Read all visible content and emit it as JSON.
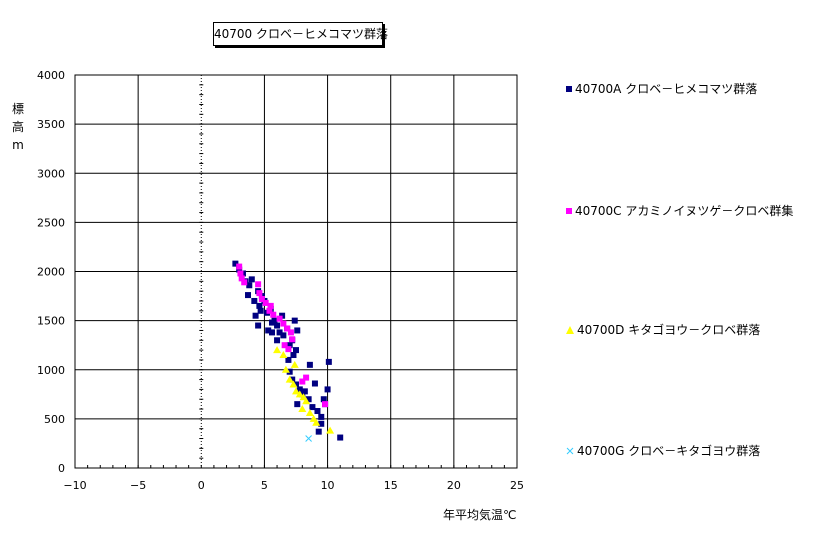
{
  "chart_data": {
    "type": "scatter",
    "title": "40700 クロベ－ヒメコマツ群落",
    "xlabel": "年平均気温℃",
    "ylabel": "標高m",
    "xlim": [
      -10,
      25
    ],
    "ylim": [
      0,
      4000
    ],
    "x_ticks": [
      -10,
      -5,
      0,
      5,
      10,
      15,
      20,
      25
    ],
    "y_ticks": [
      0,
      500,
      1000,
      1500,
      2000,
      2500,
      3000,
      3500,
      4000
    ],
    "grid": true,
    "legend_position": "right",
    "series": [
      {
        "name": "40700A クロベ－ヒメコマツ群落",
        "marker": "square",
        "color": "#000080",
        "points": [
          [
            2.7,
            2080
          ],
          [
            3.0,
            2020
          ],
          [
            3.3,
            1980
          ],
          [
            3.5,
            1900
          ],
          [
            3.8,
            1860
          ],
          [
            4.0,
            1920
          ],
          [
            3.7,
            1760
          ],
          [
            4.2,
            1700
          ],
          [
            4.5,
            1800
          ],
          [
            4.8,
            1750
          ],
          [
            4.6,
            1650
          ],
          [
            5.0,
            1700
          ],
          [
            4.3,
            1550
          ],
          [
            4.7,
            1600
          ],
          [
            5.2,
            1580
          ],
          [
            5.5,
            1620
          ],
          [
            4.5,
            1450
          ],
          [
            5.3,
            1400
          ],
          [
            5.6,
            1480
          ],
          [
            5.8,
            1500
          ],
          [
            6.0,
            1450
          ],
          [
            6.2,
            1380
          ],
          [
            6.0,
            1300
          ],
          [
            6.5,
            1350
          ],
          [
            6.8,
            1420
          ],
          [
            7.0,
            1250
          ],
          [
            7.2,
            1300
          ],
          [
            7.5,
            1200
          ],
          [
            7.3,
            1150
          ],
          [
            7.6,
            1400
          ],
          [
            7.4,
            1500
          ],
          [
            6.9,
            1100
          ],
          [
            7.0,
            980
          ],
          [
            7.2,
            900
          ],
          [
            7.5,
            850
          ],
          [
            7.8,
            800
          ],
          [
            8.0,
            750
          ],
          [
            8.2,
            780
          ],
          [
            7.6,
            650
          ],
          [
            8.5,
            700
          ],
          [
            8.8,
            620
          ],
          [
            9.0,
            860
          ],
          [
            9.2,
            580
          ],
          [
            9.5,
            520
          ],
          [
            9.8,
            650
          ],
          [
            10.0,
            800
          ],
          [
            9.7,
            700
          ],
          [
            10.1,
            1080
          ],
          [
            8.6,
            1050
          ],
          [
            9.5,
            450
          ],
          [
            9.3,
            370
          ],
          [
            11.0,
            310
          ],
          [
            5.6,
            1380
          ],
          [
            6.4,
            1550
          ]
        ]
      },
      {
        "name": "40700C アカミノイヌツゲ－クロベ群集",
        "marker": "square",
        "color": "#ff00ff",
        "points": [
          [
            3.0,
            2050
          ],
          [
            3.1,
            1980
          ],
          [
            3.2,
            1930
          ],
          [
            3.4,
            1890
          ],
          [
            4.5,
            1870
          ],
          [
            4.6,
            1780
          ],
          [
            4.8,
            1720
          ],
          [
            5.1,
            1680
          ],
          [
            5.5,
            1650
          ],
          [
            5.4,
            1600
          ],
          [
            5.7,
            1560
          ],
          [
            6.2,
            1520
          ],
          [
            6.5,
            1470
          ],
          [
            6.8,
            1420
          ],
          [
            7.1,
            1380
          ],
          [
            7.2,
            1310
          ],
          [
            6.6,
            1250
          ],
          [
            6.9,
            1210
          ],
          [
            8.3,
            920
          ],
          [
            8.0,
            880
          ],
          [
            9.8,
            650
          ]
        ]
      },
      {
        "name": "40700D キタゴヨウ－クロベ群落",
        "marker": "triangle",
        "color": "#ffff00",
        "points": [
          [
            6.0,
            1200
          ],
          [
            6.7,
            1000
          ],
          [
            7.0,
            900
          ],
          [
            7.3,
            850
          ],
          [
            7.5,
            780
          ],
          [
            7.8,
            750
          ],
          [
            8.1,
            720
          ],
          [
            8.3,
            680
          ],
          [
            8.0,
            600
          ],
          [
            8.6,
            560
          ],
          [
            8.9,
            500
          ],
          [
            9.1,
            460
          ],
          [
            10.2,
            380
          ],
          [
            7.4,
            1050
          ],
          [
            6.5,
            1150
          ]
        ]
      },
      {
        "name": "40700G クロベ－キタゴヨウ群落",
        "marker": "x",
        "color": "#33ccff",
        "points": [
          [
            8.5,
            300
          ]
        ]
      }
    ]
  }
}
